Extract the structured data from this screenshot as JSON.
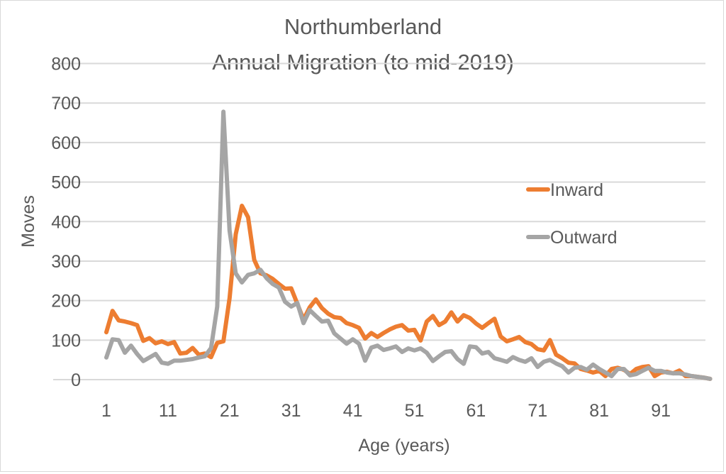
{
  "chart_data": {
    "type": "line",
    "title": "Northumberland",
    "subtitle": "Annual Migration (to mid-2019)",
    "xlabel": "Age (years)",
    "ylabel": "Moves",
    "ylim": [
      0,
      800
    ],
    "xlim": [
      1,
      98
    ],
    "yticks": [
      "0",
      "100",
      "200",
      "300",
      "400",
      "500",
      "600",
      "700",
      "800"
    ],
    "ytick_values": [
      0,
      100,
      200,
      300,
      400,
      500,
      600,
      700,
      800
    ],
    "xticks": [
      "1",
      "11",
      "21",
      "31",
      "41",
      "51",
      "61",
      "71",
      "81",
      "91"
    ],
    "xtick_values": [
      1,
      11,
      21,
      31,
      41,
      51,
      61,
      71,
      81,
      91
    ],
    "grid": "horizontal",
    "legend_position": "right",
    "x_start": 1,
    "series": [
      {
        "name": "Inward",
        "color": "#ED7D31",
        "values": [
          120,
          174,
          150,
          147,
          143,
          138,
          98,
          105,
          92,
          97,
          90,
          95,
          66,
          68,
          80,
          63,
          66,
          57,
          93,
          97,
          206,
          368,
          440,
          411,
          303,
          269,
          264,
          255,
          242,
          230,
          231,
          192,
          152,
          183,
          203,
          181,
          167,
          158,
          156,
          143,
          138,
          131,
          104,
          118,
          108,
          118,
          127,
          134,
          138,
          124,
          126,
          99,
          147,
          161,
          138,
          147,
          170,
          147,
          163,
          156,
          142,
          131,
          143,
          154,
          109,
          97,
          102,
          108,
          95,
          90,
          77,
          74,
          100,
          63,
          54,
          43,
          41,
          27,
          23,
          18,
          22,
          9,
          27,
          30,
          25,
          14,
          27,
          32,
          34,
          9,
          18,
          20,
          16,
          23,
          9,
          9,
          7,
          5,
          2
        ]
      },
      {
        "name": "Outward",
        "color": "#A5A5A5",
        "values": [
          56,
          102,
          100,
          68,
          86,
          65,
          47,
          56,
          65,
          43,
          40,
          48,
          48,
          50,
          52,
          56,
          59,
          80,
          185,
          678,
          377,
          269,
          246,
          265,
          269,
          278,
          257,
          242,
          233,
          197,
          185,
          194,
          143,
          176,
          161,
          147,
          149,
          117,
          104,
          91,
          102,
          91,
          48,
          81,
          86,
          75,
          79,
          84,
          70,
          79,
          74,
          79,
          68,
          47,
          59,
          70,
          72,
          52,
          40,
          84,
          82,
          66,
          70,
          54,
          50,
          45,
          57,
          50,
          45,
          54,
          32,
          45,
          50,
          41,
          34,
          18,
          30,
          32,
          25,
          38,
          27,
          18,
          9,
          27,
          27,
          11,
          14,
          22,
          30,
          22,
          22,
          18,
          16,
          16,
          13,
          9,
          7,
          5,
          2
        ]
      }
    ]
  }
}
